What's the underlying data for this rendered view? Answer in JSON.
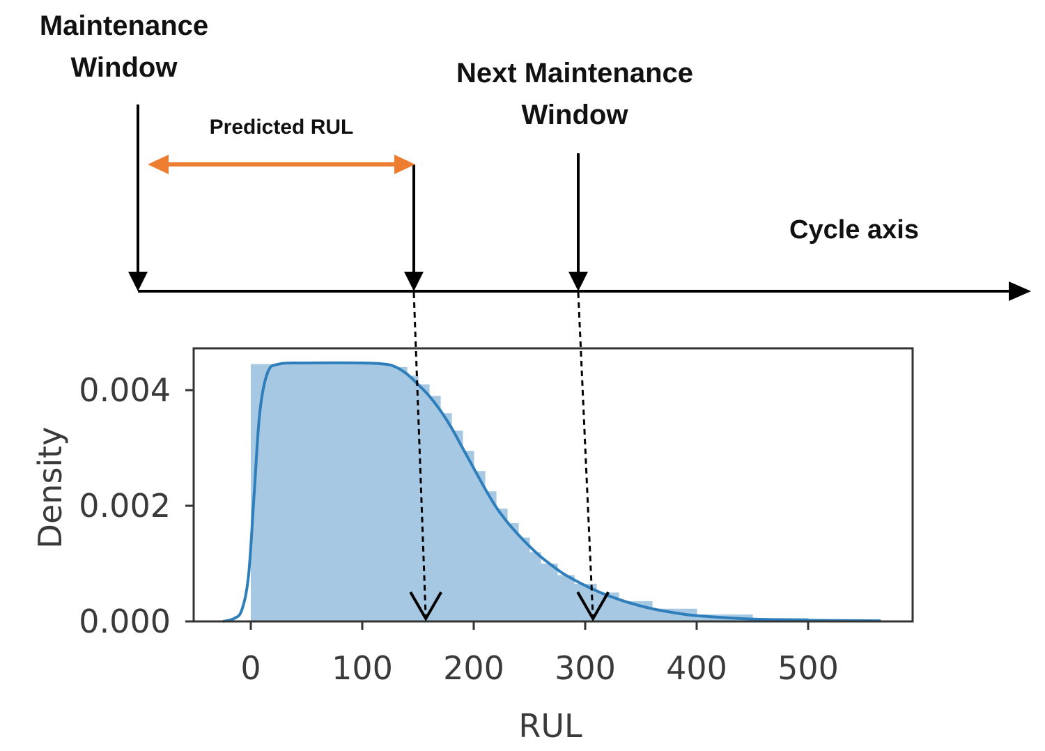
{
  "diagram": {
    "labels": {
      "maintenance_window_line1": "Maintenance",
      "maintenance_window_line2": "Window",
      "next_maintenance_line1": "Next Maintenance",
      "next_maintenance_line2": "Window",
      "predicted_rul": "Predicted RUL",
      "cycle_axis": "Cycle axis"
    },
    "colors": {
      "arrow_predicted_rul": "#ED7D31",
      "line": "#000000"
    }
  },
  "chart_data": {
    "type": "area",
    "xlabel": "RUL",
    "ylabel": "Density",
    "xlim": [
      -50,
      590
    ],
    "ylim": [
      0,
      0.00475
    ],
    "xticks": [
      0,
      100,
      200,
      300,
      400,
      500
    ],
    "yticks": [
      0.0,
      0.002,
      0.004
    ],
    "ytick_labels": [
      "0.000",
      "0.002",
      "0.004"
    ],
    "grid": false,
    "colors": {
      "histogram": "#A6C8E2",
      "kde": "#2E7EBB"
    },
    "histogram": {
      "bin_edges": [
        0,
        125,
        140,
        150,
        160,
        170,
        180,
        190,
        200,
        210,
        220,
        230,
        240,
        250,
        260,
        275,
        290,
        310,
        330,
        360,
        400,
        450,
        500,
        565
      ],
      "densities": [
        0.00445,
        0.0044,
        0.00425,
        0.0041,
        0.0039,
        0.0036,
        0.0033,
        0.00295,
        0.0026,
        0.00225,
        0.00195,
        0.0017,
        0.00145,
        0.0012,
        0.001,
        0.0008,
        0.00065,
        0.0005,
        0.00035,
        0.00022,
        0.00012,
        6e-05,
        3e-05
      ]
    },
    "kde": {
      "x": [
        -25,
        -15,
        -8,
        -2,
        3,
        8,
        15,
        25,
        50,
        100,
        120,
        130,
        140,
        150,
        160,
        170,
        180,
        190,
        200,
        210,
        220,
        230,
        240,
        250,
        260,
        270,
        280,
        290,
        300,
        310,
        320,
        340,
        360,
        380,
        400,
        450,
        500,
        565
      ],
      "y": [
        0.0,
        5e-05,
        0.0002,
        0.0008,
        0.0022,
        0.0036,
        0.0043,
        0.00445,
        0.00447,
        0.00447,
        0.00445,
        0.0044,
        0.00428,
        0.0041,
        0.0039,
        0.00365,
        0.00335,
        0.003,
        0.00265,
        0.0023,
        0.00198,
        0.00172,
        0.0015,
        0.0013,
        0.00112,
        0.00097,
        0.00083,
        0.00072,
        0.00062,
        0.00053,
        0.00045,
        0.00032,
        0.00022,
        0.00015,
        0.0001,
        4e-05,
        2e-05,
        1e-05
      ]
    },
    "markers": [
      {
        "id": "predicted_rul",
        "x": 157
      },
      {
        "id": "next_maintenance_window",
        "x": 307
      }
    ]
  }
}
